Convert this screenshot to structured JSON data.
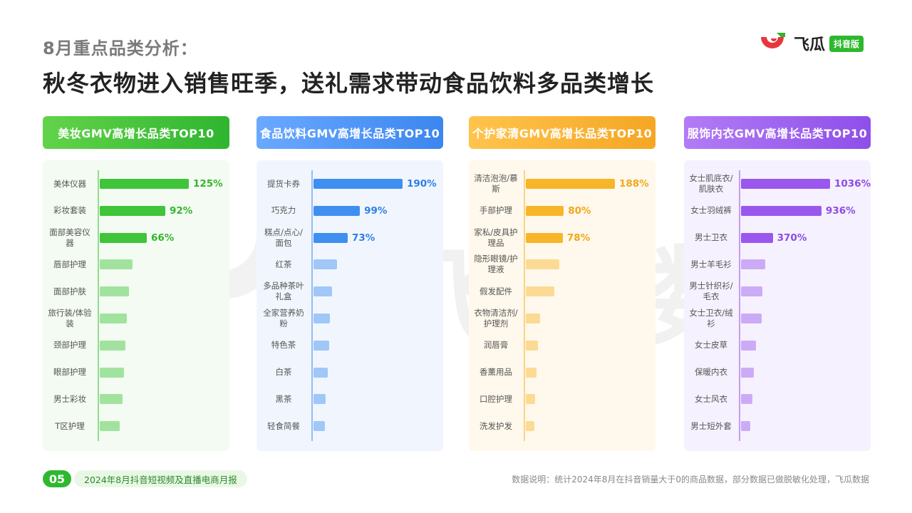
{
  "header": {
    "subtitle": "8月重点品类分析：",
    "title": "秋冬衣物进入销售旺季，送礼需求带动食品饮料多品类增长"
  },
  "logo": {
    "text": "飞瓜",
    "badge": "抖音版",
    "icon": "feigua-logo-icon"
  },
  "watermark": {
    "text": "飞瓜数据"
  },
  "chart_data": [
    {
      "type": "bar",
      "title": "美妆GMV高增长品类TOP10",
      "color": "#3fc43a",
      "categories": [
        "美体仪器",
        "彩妆套装",
        "面部美容仪器",
        "唇部护理",
        "面部护肤",
        "旅行装/体验装",
        "颈部护理",
        "眼部护理",
        "男士彩妆",
        "T区护理"
      ],
      "values": [
        125,
        92,
        66,
        46,
        41,
        38,
        36,
        34,
        32,
        28
      ],
      "labels": [
        "125%",
        "92%",
        "66%",
        "",
        "",
        "",
        "",
        "",
        "",
        ""
      ]
    },
    {
      "type": "bar",
      "title": "食品饮料GMV高增长品类TOP10",
      "color": "#3f8ff0",
      "categories": [
        "提货卡券",
        "巧克力",
        "糕点/点心/面包",
        "红茶",
        "多品种茶叶礼盒",
        "全家营养奶粉",
        "特色茶",
        "白茶",
        "黑茶",
        "轻食简餐"
      ],
      "values": [
        190,
        99,
        73,
        50,
        40,
        35,
        33,
        30,
        26,
        24
      ],
      "labels": [
        "190%",
        "99%",
        "73%",
        "",
        "",
        "",
        "",
        "",
        "",
        ""
      ]
    },
    {
      "type": "bar",
      "title": "个护家清GMV高增长品类TOP10",
      "color": "#f7b52a",
      "categories": [
        "清洁泡泡/慕斯",
        "手部护理",
        "家私/皮具护理品",
        "隐形眼镜/护理液",
        "假发配件",
        "衣物清洁剂/护理剂",
        "润唇膏",
        "香薰用品",
        "口腔护理",
        "洗发护发"
      ],
      "values": [
        188,
        80,
        78,
        70,
        60,
        30,
        25,
        22,
        19,
        16
      ],
      "labels": [
        "188%",
        "80%",
        "78%",
        "",
        "",
        "",
        "",
        "",
        "",
        ""
      ]
    },
    {
      "type": "bar",
      "title": "服饰内衣GMV高增长品类TOP10",
      "color": "#9a57ee",
      "categories": [
        "女士肌底衣/肌肤衣",
        "女士羽绒裤",
        "男士卫衣",
        "男士羊毛衫",
        "男士针织衫/毛衣",
        "女士卫衣/绒衫",
        "女士皮草",
        "保暖内衣",
        "女士风衣",
        "男士短外套"
      ],
      "values": [
        1036,
        936,
        370,
        280,
        250,
        240,
        170,
        150,
        130,
        110
      ],
      "labels": [
        "1036%",
        "936%",
        "370%",
        "",
        "",
        "",
        "",
        "",
        "",
        ""
      ]
    }
  ],
  "footer": {
    "page_number": "05",
    "report_name": "2024年8月抖音短视频及直播电商月报",
    "note": "数据说明：统计2024年8月在抖音销量大于0的商品数据，部分数据已做脱敏化处理，飞瓜数据"
  }
}
